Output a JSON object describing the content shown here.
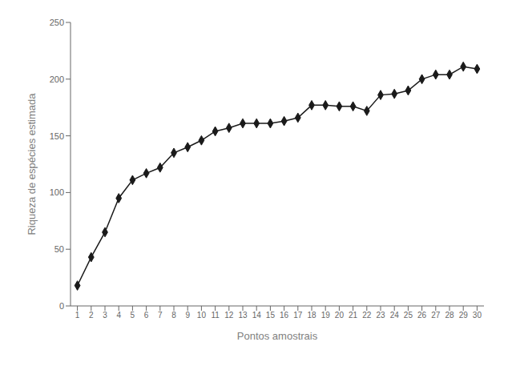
{
  "chart_data": {
    "type": "line",
    "x": [
      1,
      2,
      3,
      4,
      5,
      6,
      7,
      8,
      9,
      10,
      11,
      12,
      13,
      14,
      15,
      16,
      17,
      18,
      19,
      20,
      21,
      22,
      23,
      24,
      25,
      26,
      27,
      28,
      29,
      30
    ],
    "values": [
      18,
      43,
      65,
      95,
      111,
      117,
      122,
      135,
      140,
      146,
      154,
      157,
      161,
      161,
      161,
      163,
      166,
      177,
      177,
      176,
      176,
      172,
      186,
      187,
      190,
      200,
      204,
      204,
      211,
      209
    ],
    "xlabel": "Pontos amostrais",
    "ylabel": "Riqueza de espécies estimada",
    "xlim": [
      0.5,
      30.5
    ],
    "xticks": [
      1,
      2,
      3,
      4,
      5,
      6,
      7,
      8,
      9,
      10,
      11,
      12,
      13,
      14,
      15,
      16,
      17,
      18,
      19,
      20,
      21,
      22,
      23,
      24,
      25,
      26,
      27,
      28,
      29,
      30
    ],
    "ylim": [
      0,
      250
    ],
    "yticks": [
      0,
      50,
      100,
      150,
      200,
      250
    ],
    "color": "#1a1a1a",
    "marker": "diamond",
    "grid": false
  }
}
